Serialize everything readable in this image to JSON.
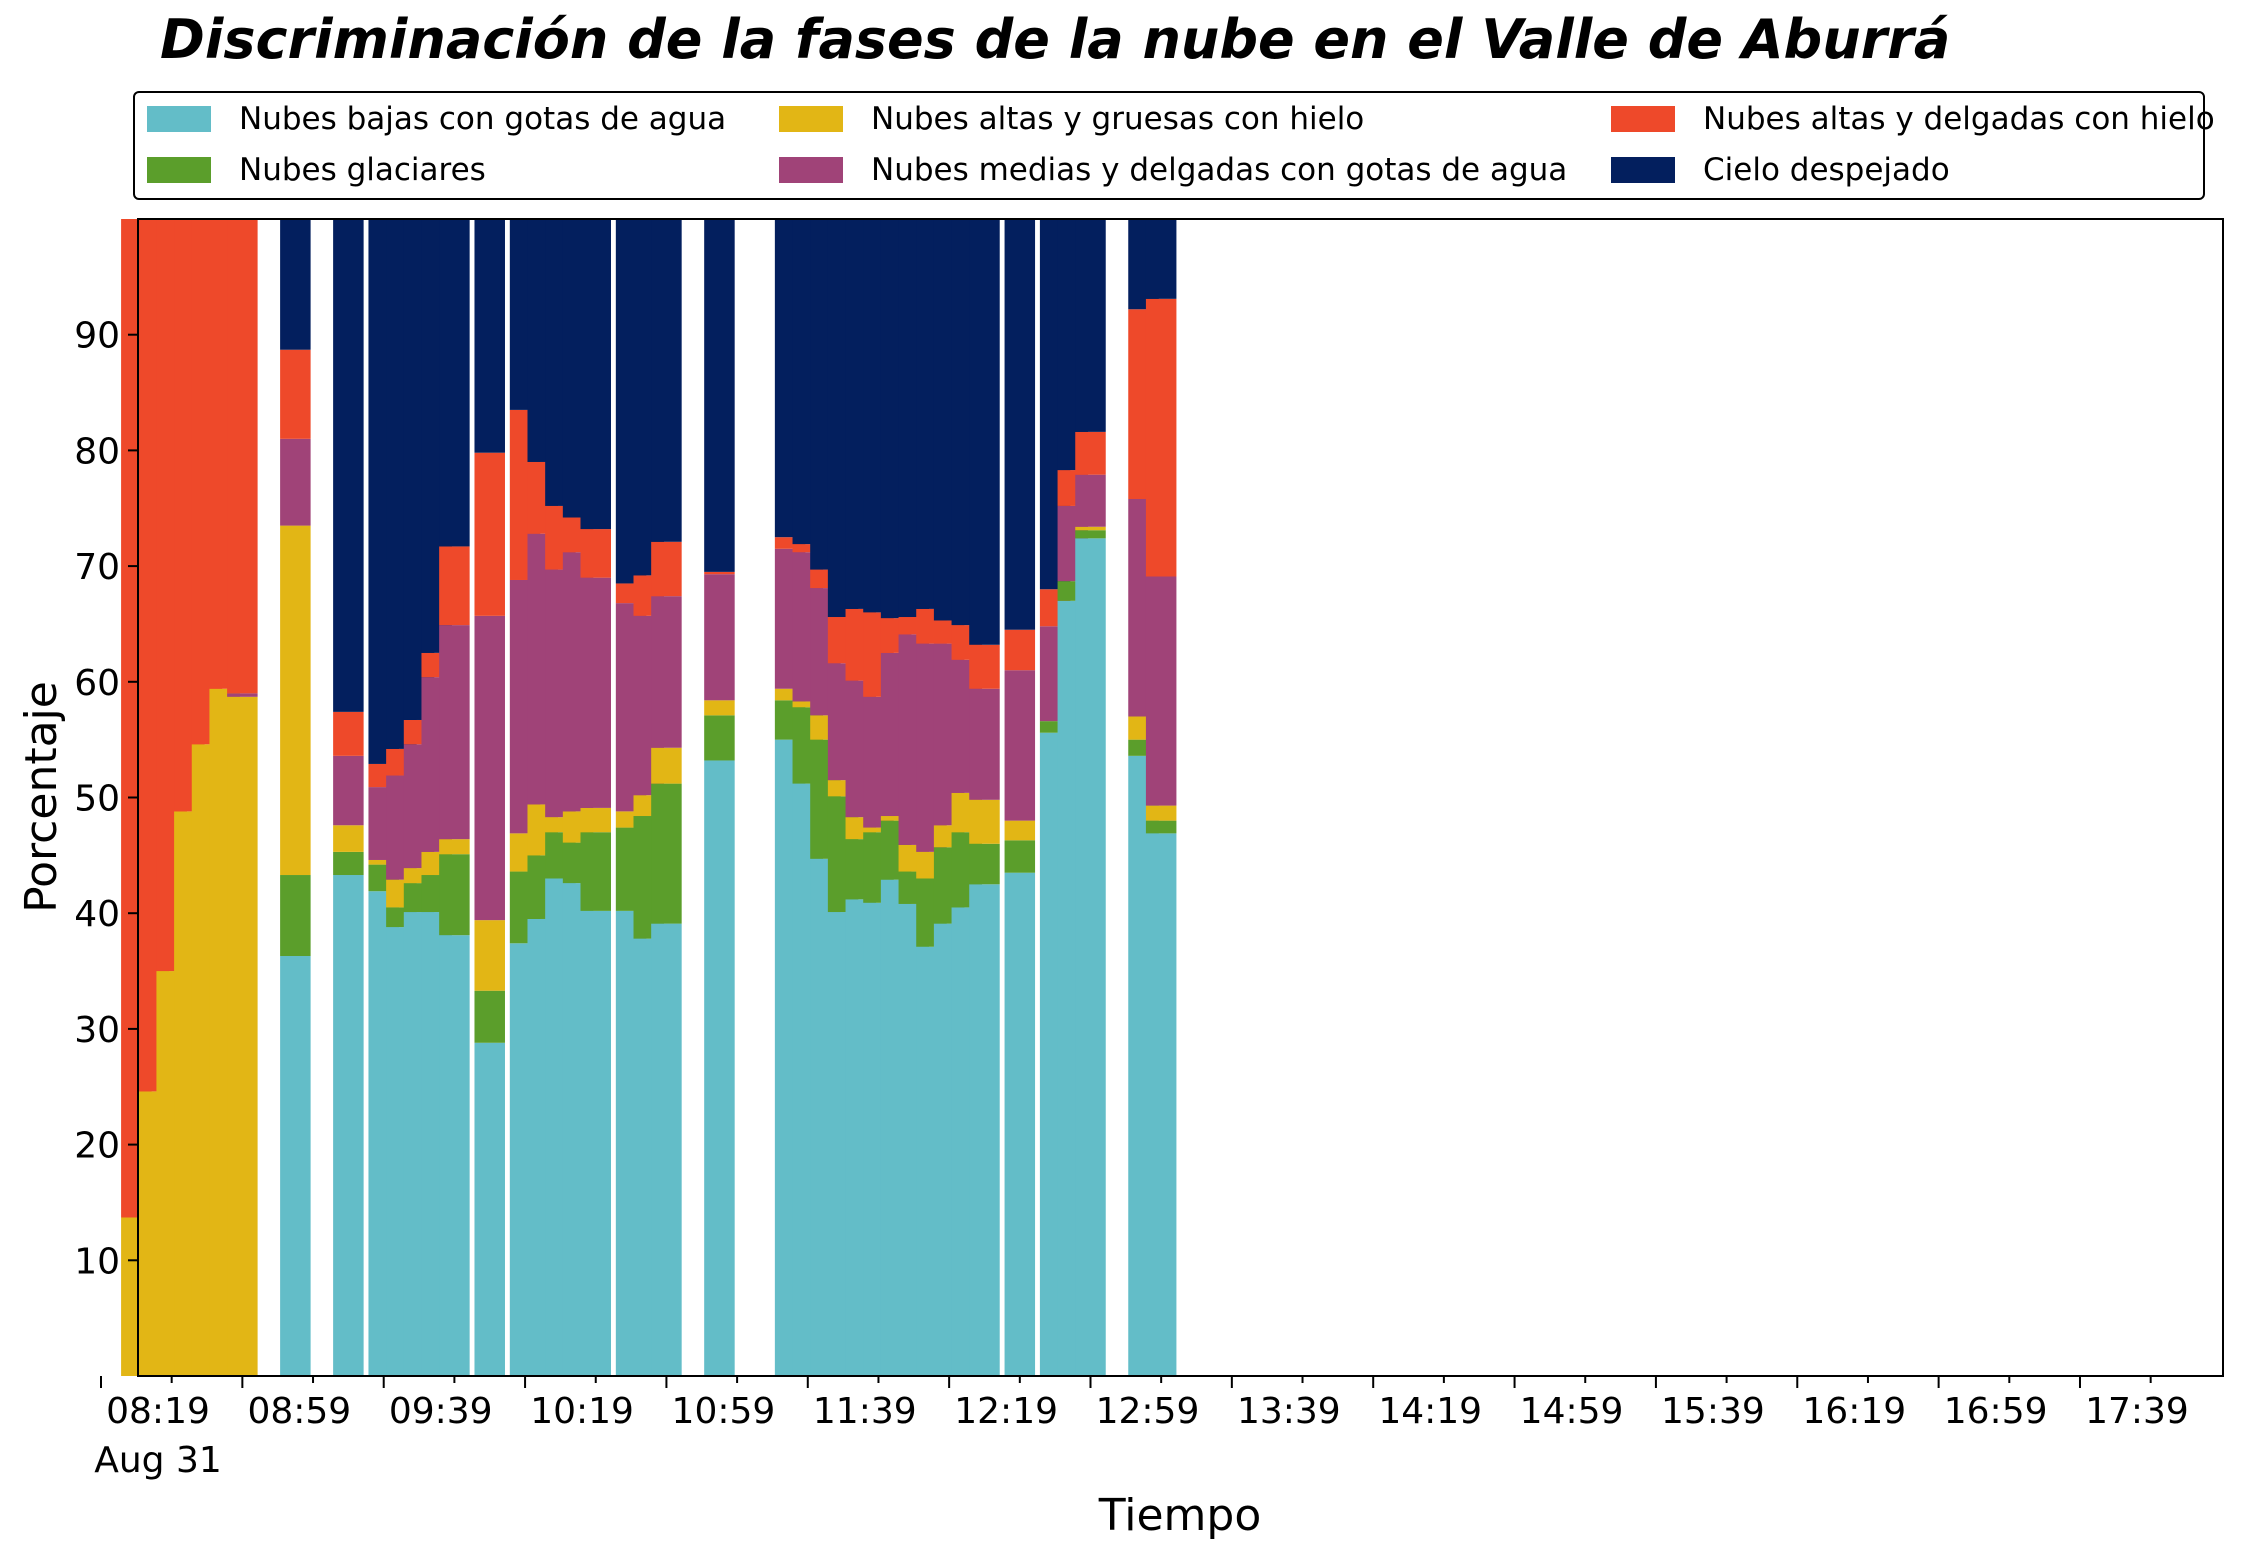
{
  "chart_data": {
    "type": "bar",
    "stacked": true,
    "title": "Discriminación de la fases de la nube en el Valle de Aburrá",
    "xlabel": "Tiempo",
    "ylabel": "Porcentaje",
    "ylim": [
      0,
      100
    ],
    "yticks": [
      10,
      20,
      30,
      40,
      50,
      60,
      70,
      80,
      90
    ],
    "xticks": [
      "08:19",
      "08:59",
      "09:39",
      "10:19",
      "10:59",
      "11:39",
      "12:19",
      "12:59",
      "13:39",
      "14:19",
      "14:59",
      "15:39",
      "16:19",
      "16:59",
      "17:39"
    ],
    "xtick_sublabel": "Aug 31",
    "legend_position": "top",
    "series": [
      {
        "name": "Nubes bajas con gotas de agua",
        "color": "#63BDC8"
      },
      {
        "name": "Nubes glaciares",
        "color": "#5B9E2B"
      },
      {
        "name": "Nubes altas y gruesas con hielo",
        "color": "#E2B615"
      },
      {
        "name": "Nubes medias y delgadas con gotas de agua",
        "color": "#A04378"
      },
      {
        "name": "Nubes altas y delgadas con hielo",
        "color": "#EE492A"
      },
      {
        "name": "Cielo despejado",
        "color": "#031F5E"
      }
    ],
    "legend_order": [
      0,
      2,
      4,
      1,
      3,
      5
    ],
    "bars": [
      {
        "time": "08:24",
        "values": [
          0,
          0,
          13.7,
          0,
          86.3,
          0
        ]
      },
      {
        "time": "08:29",
        "values": [
          0,
          0,
          24.6,
          0,
          75.4,
          0
        ]
      },
      {
        "time": "08:34",
        "values": [
          0,
          0,
          35.0,
          0,
          65.0,
          0
        ]
      },
      {
        "time": "08:39",
        "values": [
          0,
          0,
          48.8,
          0,
          51.2,
          0
        ]
      },
      {
        "time": "08:44",
        "values": [
          0,
          0,
          54.6,
          0,
          45.4,
          0
        ]
      },
      {
        "time": "08:49",
        "values": [
          0,
          0,
          59.4,
          0,
          40.6,
          0
        ]
      },
      {
        "time": "08:54",
        "values": [
          0,
          0,
          58.7,
          0.3,
          41.0,
          0
        ]
      },
      {
        "time": "09:09",
        "values": [
          36.3,
          7.0,
          30.2,
          7.5,
          7.7,
          11.3
        ]
      },
      {
        "time": "09:24",
        "values": [
          43.3,
          2.0,
          2.3,
          6.0,
          3.8,
          42.6
        ]
      },
      {
        "time": "09:34",
        "values": [
          41.9,
          2.3,
          0.4,
          6.3,
          2.0,
          47.1
        ]
      },
      {
        "time": "09:39",
        "values": [
          38.8,
          1.7,
          2.4,
          9.0,
          2.3,
          45.8
        ]
      },
      {
        "time": "09:44",
        "values": [
          40.1,
          2.5,
          1.3,
          10.7,
          2.1,
          43.3
        ]
      },
      {
        "time": "09:49",
        "values": [
          40.1,
          3.2,
          2.0,
          15.1,
          2.1,
          37.5
        ]
      },
      {
        "time": "09:54",
        "values": [
          38.1,
          7.0,
          1.3,
          18.5,
          6.8,
          28.3
        ]
      },
      {
        "time": "10:04",
        "values": [
          28.8,
          4.5,
          6.1,
          26.3,
          14.1,
          20.2
        ]
      },
      {
        "time": "10:14",
        "values": [
          37.4,
          6.2,
          3.3,
          21.9,
          14.7,
          16.5
        ]
      },
      {
        "time": "10:19",
        "values": [
          39.5,
          5.5,
          4.4,
          23.4,
          6.2,
          21.0
        ]
      },
      {
        "time": "10:24",
        "values": [
          43.0,
          4.0,
          1.3,
          21.4,
          5.5,
          24.8
        ]
      },
      {
        "time": "10:29",
        "values": [
          42.6,
          3.5,
          2.7,
          22.4,
          3.0,
          25.8
        ]
      },
      {
        "time": "10:34",
        "values": [
          40.2,
          6.8,
          2.1,
          19.9,
          4.2,
          26.8
        ]
      },
      {
        "time": "10:44",
        "values": [
          40.2,
          7.2,
          1.4,
          18.0,
          1.7,
          31.5
        ]
      },
      {
        "time": "10:49",
        "values": [
          37.8,
          10.6,
          1.8,
          15.5,
          3.5,
          30.8
        ]
      },
      {
        "time": "10:54",
        "values": [
          39.1,
          12.1,
          3.1,
          13.1,
          4.7,
          27.9
        ]
      },
      {
        "time": "11:09",
        "values": [
          53.2,
          3.9,
          1.3,
          10.9,
          0.2,
          30.5
        ]
      },
      {
        "time": "11:29",
        "values": [
          55.0,
          3.4,
          1.0,
          12.1,
          1.0,
          27.5
        ]
      },
      {
        "time": "11:34",
        "values": [
          51.2,
          6.6,
          0.5,
          12.9,
          0.7,
          28.1
        ]
      },
      {
        "time": "11:39",
        "values": [
          44.7,
          10.3,
          2.1,
          11.0,
          1.6,
          30.3
        ]
      },
      {
        "time": "11:44",
        "values": [
          40.1,
          10.0,
          1.4,
          10.1,
          4.0,
          34.4
        ]
      },
      {
        "time": "11:49",
        "values": [
          41.2,
          5.2,
          1.9,
          11.8,
          6.2,
          33.7
        ]
      },
      {
        "time": "11:54",
        "values": [
          40.9,
          6.1,
          0.4,
          11.3,
          7.3,
          34.0
        ]
      },
      {
        "time": "11:59",
        "values": [
          42.9,
          5.1,
          0.4,
          14.1,
          3.0,
          34.5
        ]
      },
      {
        "time": "12:04",
        "values": [
          40.8,
          2.8,
          2.3,
          18.2,
          1.5,
          34.4
        ]
      },
      {
        "time": "12:09",
        "values": [
          37.1,
          5.9,
          2.3,
          18.0,
          3.0,
          33.7
        ]
      },
      {
        "time": "12:14",
        "values": [
          39.1,
          6.6,
          1.9,
          15.7,
          2.0,
          34.7
        ]
      },
      {
        "time": "12:19",
        "values": [
          40.5,
          6.5,
          3.4,
          11.5,
          3.0,
          35.1
        ]
      },
      {
        "time": "12:24",
        "values": [
          42.5,
          3.5,
          3.8,
          9.6,
          3.8,
          36.8
        ]
      },
      {
        "time": "12:34",
        "values": [
          43.5,
          2.8,
          1.7,
          13.0,
          3.5,
          35.5
        ]
      },
      {
        "time": "12:44",
        "values": [
          55.6,
          1.0,
          0,
          8.2,
          3.2,
          32.0
        ]
      },
      {
        "time": "12:49",
        "values": [
          67.0,
          1.7,
          0,
          6.5,
          3.1,
          21.7
        ]
      },
      {
        "time": "12:54",
        "values": [
          72.4,
          0.7,
          0.3,
          4.5,
          3.7,
          18.4
        ]
      },
      {
        "time": "13:09",
        "values": [
          53.6,
          1.4,
          2.0,
          18.8,
          16.4,
          7.8
        ]
      },
      {
        "time": "13:14",
        "values": [
          46.9,
          1.1,
          1.3,
          19.8,
          24.0,
          6.9
        ]
      }
    ]
  }
}
